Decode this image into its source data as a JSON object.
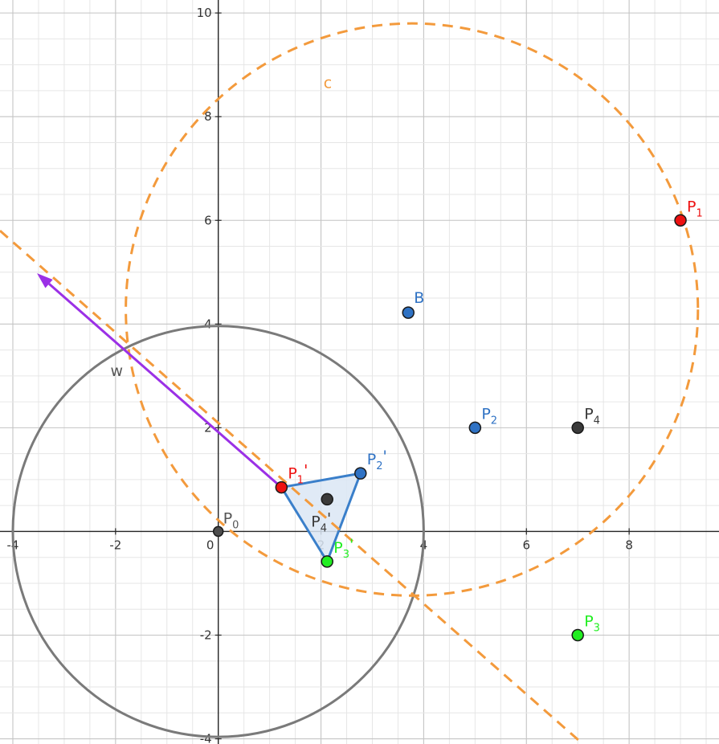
{
  "colors": {
    "minor_grid": "#e6e6e6",
    "major_grid": "#c4c4c4",
    "axis": "#252525",
    "circle_gray": "#7a7a7a",
    "circle_orange": "#f39a3c",
    "vector": "#9b30e6",
    "triangle_stroke": "#3a7fca",
    "triangle_fill": "#dae6f4",
    "red": "#ee1111",
    "blue": "#2f72c4",
    "green": "#22ee22",
    "dark": "#3a3a3a",
    "gray_label": "#555555"
  },
  "chart_data": {
    "type": "geometry",
    "xlim": [
      -4.25,
      9.75
    ],
    "ylim": [
      -4.1,
      10.25
    ],
    "grid": true,
    "x_ticks": [
      "-4",
      "-2",
      "0",
      "2",
      "4",
      "6",
      "8"
    ],
    "y_ticks": [
      "10",
      "8",
      "6",
      "4",
      "2",
      "-2",
      "-4"
    ],
    "points": [
      {
        "id": "P0",
        "x": 0,
        "y": 0,
        "label": "P",
        "sub": "0",
        "prime": "",
        "color": "#4d4d4d",
        "label_color": "#555555"
      },
      {
        "id": "P1",
        "x": 9,
        "y": 6,
        "label": "P",
        "sub": "1",
        "prime": "",
        "color": "#ee1111",
        "label_color": "#ee1111"
      },
      {
        "id": "P2",
        "x": 5,
        "y": 2,
        "label": "P",
        "sub": "2",
        "prime": "",
        "color": "#2f72c4",
        "label_color": "#2f72c4"
      },
      {
        "id": "P3",
        "x": 7,
        "y": -2,
        "label": "P",
        "sub": "3",
        "prime": "",
        "color": "#22ee22",
        "label_color": "#22ee22"
      },
      {
        "id": "P4",
        "x": 7,
        "y": 2,
        "label": "P",
        "sub": "4",
        "prime": "",
        "color": "#3a3a3a",
        "label_color": "#3a3a3a"
      },
      {
        "id": "B",
        "x": 3.7,
        "y": 4.22,
        "label": "B",
        "sub": "",
        "prime": "",
        "color": "#2f72c4",
        "label_color": "#2f72c4"
      },
      {
        "id": "P1p",
        "x": 1.23,
        "y": 0.85,
        "label": "P",
        "sub": "1",
        "prime": "'",
        "color": "#ee1111",
        "label_color": "#ee1111"
      },
      {
        "id": "P2p",
        "x": 2.77,
        "y": 1.12,
        "label": "P",
        "sub": "2",
        "prime": "'",
        "color": "#2f72c4",
        "label_color": "#2f72c4"
      },
      {
        "id": "P3p",
        "x": 2.12,
        "y": -0.58,
        "label": "P",
        "sub": "3",
        "prime": "'",
        "color": "#22ee22",
        "label_color": "#22ee22"
      },
      {
        "id": "P4p",
        "x": 2.12,
        "y": 0.62,
        "label": "P",
        "sub": "4",
        "prime": "'",
        "color": "#3a3a3a",
        "label_color": "#3a3a3a"
      }
    ],
    "circles": [
      {
        "id": "circle-gray",
        "cx": 0,
        "cy": 0,
        "r": 4,
        "dashed": false,
        "color": "#7a7a7a",
        "label": ""
      },
      {
        "id": "circle-c",
        "cx": 3.77,
        "cy": 4.28,
        "r": 5.57,
        "dashed": true,
        "color": "#f39a3c",
        "label": "c"
      }
    ],
    "dashed_line": {
      "from": [
        -4.25,
        5.8
      ],
      "to": [
        7.1,
        -4.1
      ],
      "color": "#f39a3c"
    },
    "vector": {
      "from": [
        1.23,
        0.85
      ],
      "to": [
        -3.53,
        4.98
      ],
      "color": "#9b30e6",
      "label": "w"
    },
    "triangle": {
      "vertices": [
        "P1p",
        "P2p",
        "P3p"
      ],
      "stroke": "#3a7fca",
      "fill": "#dae6f4"
    }
  }
}
